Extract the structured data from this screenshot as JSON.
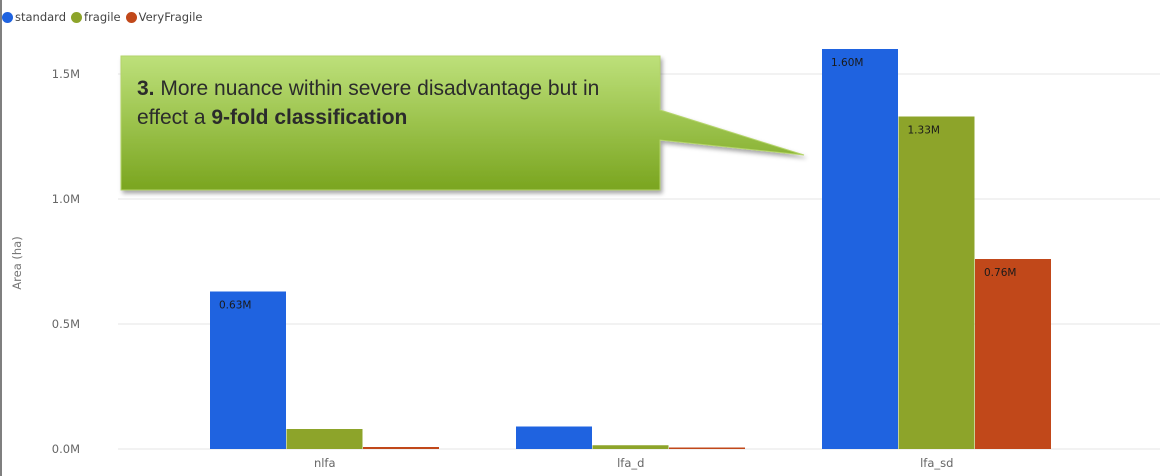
{
  "legend": [
    {
      "label": "standard",
      "color": "#1f63e0"
    },
    {
      "label": "fragile",
      "color": "#8da42a"
    },
    {
      "label": "VeryFragile",
      "color": "#c1481a"
    }
  ],
  "callout": {
    "number": "3.",
    "text_part1": " More nuance within severe disadvantage but in effect a ",
    "bold_part": "9-fold classification",
    "fill_top": "#bde07a",
    "fill_bottom": "#7aa51f"
  },
  "chart_data": {
    "type": "bar",
    "categories": [
      "nlfa",
      "lfa_d",
      "lfa_sd"
    ],
    "series": [
      {
        "name": "standard",
        "color": "#1f63e0",
        "values": [
          630000,
          90000,
          1600000
        ],
        "labels": [
          "0.63M",
          "",
          "1.60M"
        ]
      },
      {
        "name": "fragile",
        "color": "#8da42a",
        "values": [
          80000,
          15000,
          1330000
        ],
        "labels": [
          "",
          "",
          "1.33M"
        ]
      },
      {
        "name": "VeryFragile",
        "color": "#c1481a",
        "values": [
          8000,
          6000,
          760000
        ],
        "labels": [
          "",
          "",
          "0.76M"
        ]
      }
    ],
    "ylabel": "Area (ha)",
    "ylim": [
      0,
      1600000
    ],
    "yticks": [
      0,
      500000,
      1000000,
      1500000
    ],
    "yticklabels": [
      "0.0M",
      "0.5M",
      "1.0M",
      "1.5M"
    ],
    "grid": true,
    "legend_position": "top-left"
  }
}
